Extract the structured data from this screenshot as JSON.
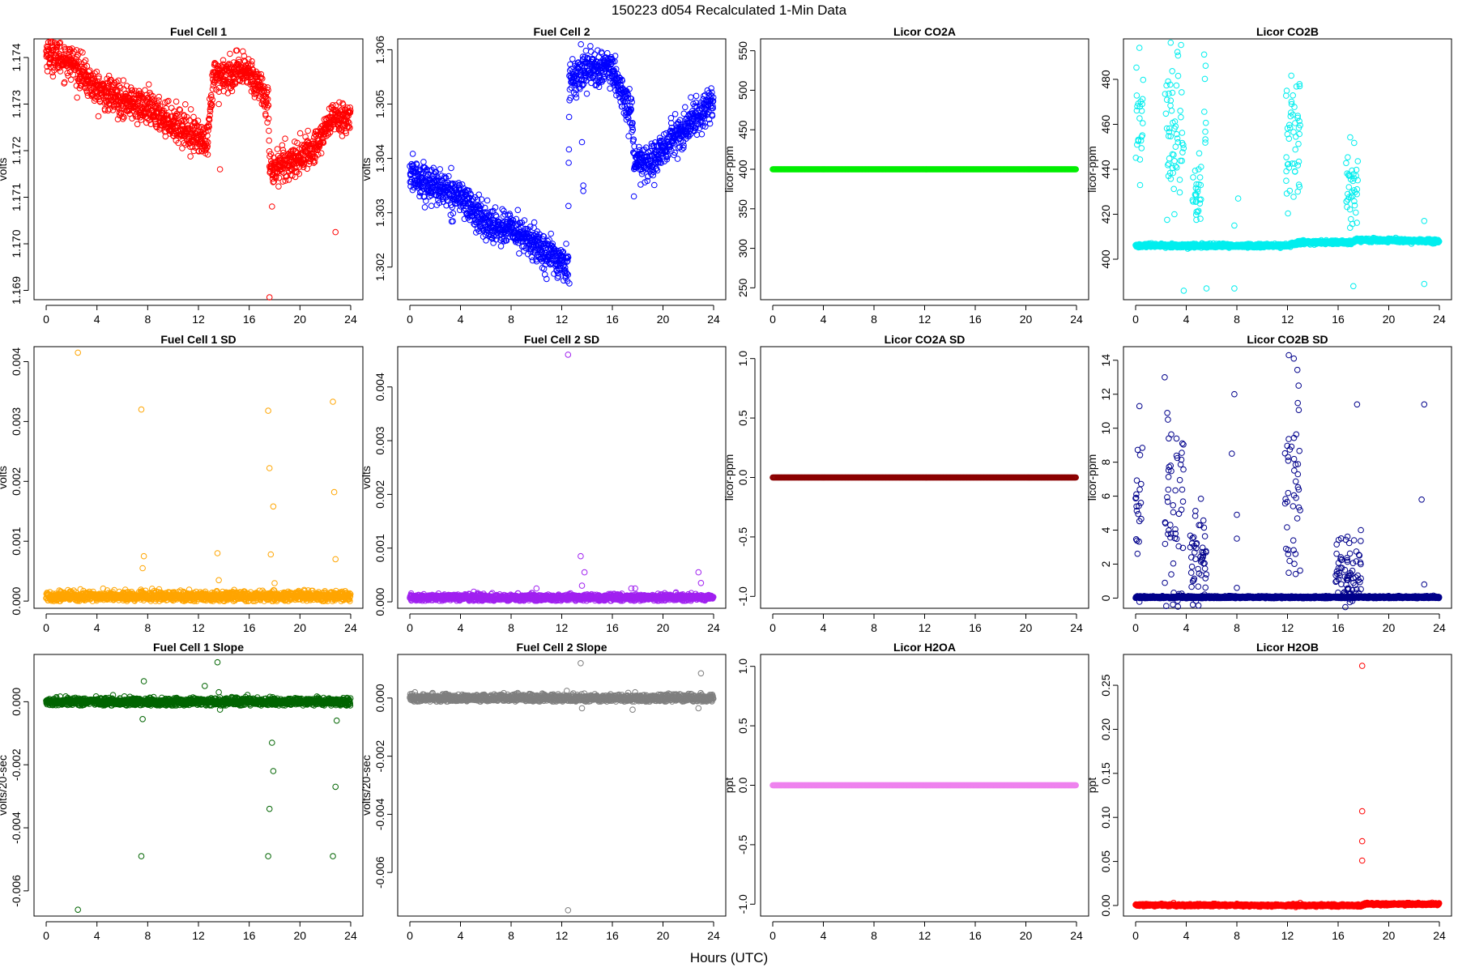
{
  "figure": {
    "title": "150223   d054   Recalculated 1-Min Data",
    "xlabel": "Hours (UTC)"
  },
  "chart_data": [
    {
      "type": "scatter",
      "title": "Fuel Cell 1",
      "ylabel": "volts",
      "color": "#ff0000",
      "xlim": [
        0,
        24
      ],
      "ylim": [
        1.1688,
        1.1744
      ],
      "x_ticks": [
        "0",
        "4",
        "8",
        "12",
        "16",
        "20",
        "24"
      ],
      "y_ticks": [
        "1.169",
        "1.170",
        "1.171",
        "1.172",
        "1.173",
        "1.174"
      ],
      "series": [
        {
          "pattern": "piecewise",
          "noise": 0.00018,
          "segments": [
            [
              0,
              1.1741
            ],
            [
              2,
              1.1739
            ],
            [
              4,
              1.1733
            ],
            [
              8,
              1.1729
            ],
            [
              12,
              1.1723
            ],
            [
              12.7,
              1.1721
            ],
            [
              13.2,
              1.1736
            ],
            [
              16,
              1.1737
            ],
            [
              17.5,
              1.1731
            ],
            [
              17.6,
              1.1716
            ],
            [
              19.5,
              1.1718
            ],
            [
              21,
              1.172
            ],
            [
              22.5,
              1.1727
            ],
            [
              23.8,
              1.1727
            ]
          ],
          "outliers": [
            [
              17.6,
              1.16885
            ],
            [
              22.8,
              1.17025
            ],
            [
              13.7,
              1.1716
            ],
            [
              13.6,
              1.173
            ],
            [
              17.8,
              1.1708
            ]
          ]
        }
      ]
    },
    {
      "type": "scatter",
      "title": "Fuel Cell 2",
      "ylabel": "volts",
      "color": "#0000ff",
      "xlim": [
        0,
        24
      ],
      "ylim": [
        1.3014,
        1.3062
      ],
      "x_ticks": [
        "0",
        "4",
        "8",
        "12",
        "16",
        "20",
        "24"
      ],
      "y_ticks": [
        "1.302",
        "1.303",
        "1.304",
        "1.305",
        "1.306"
      ],
      "series": [
        {
          "pattern": "piecewise",
          "noise": 0.00016,
          "segments": [
            [
              0,
              1.3037
            ],
            [
              2,
              1.3035
            ],
            [
              4,
              1.3033
            ],
            [
              6,
              1.3028
            ],
            [
              8,
              1.3027
            ],
            [
              10,
              1.3024
            ],
            [
              12.5,
              1.302
            ],
            [
              12.6,
              1.3054
            ],
            [
              14,
              1.3057
            ],
            [
              16,
              1.3056
            ],
            [
              17.5,
              1.3048
            ],
            [
              17.8,
              1.3039
            ],
            [
              19,
              1.3039
            ],
            [
              21,
              1.3044
            ],
            [
              23.8,
              1.305
            ]
          ],
          "outliers": [
            [
              13.6,
              1.3043
            ],
            [
              13.7,
              1.3035
            ],
            [
              13.7,
              1.3034
            ],
            [
              12.6,
              1.3017
            ],
            [
              17.7,
              1.3033
            ]
          ]
        }
      ]
    },
    {
      "type": "scatter",
      "title": "Licor CO2A",
      "ylabel": "licor-ppm",
      "color": "#00ee00",
      "xlim": [
        0,
        24
      ],
      "ylim": [
        235,
        565
      ],
      "x_ticks": [
        "0",
        "4",
        "8",
        "12",
        "16",
        "20",
        "24"
      ],
      "y_ticks": [
        "250",
        "300",
        "350",
        "400",
        "450",
        "500",
        "550"
      ],
      "series": [
        {
          "pattern": "constant",
          "value": 400,
          "noise": 0
        }
      ]
    },
    {
      "type": "scatter",
      "title": "Licor CO2B",
      "ylabel": "licor-ppm",
      "color": "#00eeee",
      "xlim": [
        0,
        24
      ],
      "ylim": [
        382,
        498
      ],
      "x_ticks": [
        "0",
        "4",
        "8",
        "12",
        "16",
        "20",
        "24"
      ],
      "y_ticks": [
        "400",
        "420",
        "440",
        "460",
        "480"
      ],
      "series": [
        {
          "pattern": "piecewise",
          "noise": 0.4,
          "segments": [
            [
              0,
              406
            ],
            [
              5.5,
              406
            ],
            [
              12,
              406
            ],
            [
              13,
              407.5
            ],
            [
              17,
              407.5
            ],
            [
              17.5,
              408.5
            ],
            [
              24,
              408
            ]
          ],
          "clusters": [
            [
              0,
              0.6,
              460,
              15
            ],
            [
              2.3,
              3.8,
              455,
              18
            ],
            [
              4.5,
              5.2,
              430,
              8
            ],
            [
              5.4,
              5.6,
              465,
              15
            ],
            [
              11.8,
              13,
              450,
              15
            ],
            [
              16.6,
              17.6,
              430,
              10
            ]
          ],
          "outliers": [
            [
              7.8,
              415
            ],
            [
              8.1,
              427
            ],
            [
              3.8,
              386
            ],
            [
              5.6,
              387
            ],
            [
              7.8,
              387
            ],
            [
              17.2,
              388
            ],
            [
              22.8,
              389
            ],
            [
              22.8,
              417
            ],
            [
              0.3,
              494
            ]
          ]
        }
      ]
    },
    {
      "type": "scatter",
      "title": "Fuel Cell 1 SD",
      "ylabel": "volts",
      "color": "#ffa500",
      "xlim": [
        0,
        24
      ],
      "ylim": [
        -0.00012,
        0.00425
      ],
      "x_ticks": [
        "0",
        "4",
        "8",
        "12",
        "16",
        "20",
        "24"
      ],
      "y_ticks": [
        "0.000",
        "0.001",
        "0.002",
        "0.003",
        "0.004"
      ],
      "series": [
        {
          "pattern": "constant",
          "value": 8e-05,
          "noise": 4e-05,
          "outliers": [
            [
              2.5,
              0.00415
            ],
            [
              7.5,
              0.0032
            ],
            [
              7.7,
              0.00075
            ],
            [
              7.6,
              0.00055
            ],
            [
              13.5,
              0.0008
            ],
            [
              13.6,
              0.00035
            ],
            [
              17.5,
              0.00318
            ],
            [
              17.6,
              0.00222
            ],
            [
              17.9,
              0.00158
            ],
            [
              17.7,
              0.00078
            ],
            [
              22.6,
              0.00333
            ],
            [
              22.7,
              0.00182
            ],
            [
              22.8,
              0.0007
            ],
            [
              18,
              0.0003
            ]
          ]
        }
      ]
    },
    {
      "type": "scatter",
      "title": "Fuel Cell 2 SD",
      "ylabel": "volts",
      "color": "#a020f0",
      "xlim": [
        0,
        24
      ],
      "ylim": [
        -0.00012,
        0.00475
      ],
      "x_ticks": [
        "0",
        "4",
        "8",
        "12",
        "16",
        "20",
        "24"
      ],
      "y_ticks": [
        "0.000",
        "0.001",
        "0.002",
        "0.003",
        "0.004"
      ],
      "series": [
        {
          "pattern": "constant",
          "value": 8e-05,
          "noise": 3e-05,
          "outliers": [
            [
              12.5,
              0.0046
            ],
            [
              13.5,
              0.00085
            ],
            [
              13.8,
              0.00055
            ],
            [
              13.6,
              0.0003
            ],
            [
              10,
              0.00025
            ],
            [
              22.8,
              0.00055
            ],
            [
              23,
              0.00035
            ],
            [
              17.5,
              0.00025
            ],
            [
              17.8,
              0.00025
            ]
          ]
        }
      ]
    },
    {
      "type": "scatter",
      "title": "Licor CO2A SD",
      "ylabel": "licor-ppm",
      "color": "#8b0000",
      "xlim": [
        0,
        24
      ],
      "ylim": [
        -1.1,
        1.1
      ],
      "x_ticks": [
        "0",
        "4",
        "8",
        "12",
        "16",
        "20",
        "24"
      ],
      "y_ticks": [
        "-1.0",
        "-0.5",
        "0.0",
        "0.5",
        "1.0"
      ],
      "series": [
        {
          "pattern": "constant",
          "value": 0,
          "noise": 0
        }
      ]
    },
    {
      "type": "scatter",
      "title": "Licor CO2B SD",
      "ylabel": "licor-ppm",
      "color": "#00008b",
      "xlim": [
        0,
        24
      ],
      "ylim": [
        -0.6,
        14.8
      ],
      "x_ticks": [
        "0",
        "4",
        "8",
        "12",
        "16",
        "20",
        "24"
      ],
      "y_ticks": [
        "0",
        "2",
        "4",
        "6",
        "8",
        "10",
        "12",
        "14"
      ],
      "series": [
        {
          "pattern": "constant",
          "value": 0.05,
          "noise": 0.03,
          "clusters": [
            [
              0,
              0.6,
              4.5,
              3.5
            ],
            [
              2.3,
              3.8,
              4.2,
              3.5
            ],
            [
              4.3,
              5.6,
              1.8,
              1.5
            ],
            [
              11.8,
              13,
              6,
              4
            ],
            [
              15.8,
              17.8,
              1.2,
              1.2
            ]
          ],
          "outliers": [
            [
              2.3,
              13
            ],
            [
              12.1,
              14.3
            ],
            [
              12.5,
              14.1
            ],
            [
              0.3,
              11.3
            ],
            [
              2.5,
              10.9
            ],
            [
              7.8,
              12
            ],
            [
              17.5,
              11.4
            ],
            [
              22.8,
              11.4
            ],
            [
              7.6,
              8.5
            ],
            [
              8,
              4.9
            ],
            [
              8,
              3.5
            ],
            [
              22.6,
              5.8
            ],
            [
              22.8,
              0.8
            ],
            [
              8,
              0.6
            ],
            [
              17.8,
              4
            ]
          ]
        }
      ]
    },
    {
      "type": "scatter",
      "title": "Fuel Cell 1 Slope",
      "ylabel": "volts/20-sec",
      "color": "#006400",
      "xlim": [
        0,
        24
      ],
      "ylim": [
        -0.0068,
        0.0015
      ],
      "x_ticks": [
        "0",
        "4",
        "8",
        "12",
        "16",
        "20",
        "24"
      ],
      "y_ticks": [
        "-0.006",
        "-0.004",
        "-0.002",
        "0.000"
      ],
      "series": [
        {
          "pattern": "constant",
          "value": 0,
          "noise": 6e-05,
          "outliers": [
            [
              2.5,
              -0.0066
            ],
            [
              7.5,
              -0.0049
            ],
            [
              7.6,
              -0.00055
            ],
            [
              7.7,
              0.00065
            ],
            [
              13.5,
              0.00125
            ],
            [
              12.5,
              0.0005
            ],
            [
              17.5,
              -0.0049
            ],
            [
              17.6,
              -0.0034
            ],
            [
              17.8,
              -0.0013
            ],
            [
              17.9,
              -0.0022
            ],
            [
              22.6,
              -0.0049
            ],
            [
              22.8,
              -0.0027
            ],
            [
              22.9,
              -0.0006
            ],
            [
              13.6,
              0.0003
            ],
            [
              13.7,
              -0.00025
            ]
          ]
        }
      ]
    },
    {
      "type": "scatter",
      "title": "Fuel Cell 2 Slope",
      "ylabel": "volts/20-sec",
      "color": "#7f7f7f",
      "xlim": [
        0,
        24
      ],
      "ylim": [
        -0.0075,
        0.0015
      ],
      "x_ticks": [
        "0",
        "4",
        "8",
        "12",
        "16",
        "20",
        "24"
      ],
      "y_ticks": [
        "-0.006",
        "-0.004",
        "-0.002",
        "0.000"
      ],
      "series": [
        {
          "pattern": "constant",
          "value": 0,
          "noise": 6e-05,
          "outliers": [
            [
              12.5,
              -0.0073
            ],
            [
              13.5,
              0.0012
            ],
            [
              23,
              0.00085
            ],
            [
              22.8,
              -0.00035
            ],
            [
              17.6,
              -0.0004
            ],
            [
              17.8,
              0.0002
            ],
            [
              13.6,
              -0.00035
            ],
            [
              12.4,
              0.00025
            ]
          ]
        }
      ]
    },
    {
      "type": "scatter",
      "title": "Licor H2OA",
      "ylabel": "ppt",
      "color": "#ee82ee",
      "xlim": [
        0,
        24
      ],
      "ylim": [
        -1.1,
        1.1
      ],
      "x_ticks": [
        "0",
        "4",
        "8",
        "12",
        "16",
        "20",
        "24"
      ],
      "y_ticks": [
        "-1.0",
        "-0.5",
        "0.0",
        "0.5",
        "1.0"
      ],
      "series": [
        {
          "pattern": "constant",
          "value": 0,
          "noise": 0
        }
      ]
    },
    {
      "type": "scatter",
      "title": "Licor H2OB",
      "ylabel": "ppt",
      "color": "#ff0000",
      "xlim": [
        0,
        24
      ],
      "ylim": [
        -0.012,
        0.285
      ],
      "x_ticks": [
        "0",
        "4",
        "8",
        "12",
        "16",
        "20",
        "24"
      ],
      "y_ticks": [
        "0.00",
        "0.05",
        "0.10",
        "0.15",
        "0.20",
        "0.25"
      ],
      "series": [
        {
          "pattern": "piecewise",
          "noise": 0.0006,
          "segments": [
            [
              0,
              0.0005
            ],
            [
              17.9,
              0.0
            ],
            [
              18,
              0.0015
            ],
            [
              24,
              0.0015
            ]
          ],
          "outliers": [
            [
              17.9,
              0.272
            ],
            [
              17.9,
              0.107
            ],
            [
              17.9,
              0.073
            ],
            [
              17.9,
              0.051
            ],
            [
              3,
              0.003
            ],
            [
              8,
              0.002
            ],
            [
              13,
              0.003
            ]
          ]
        }
      ]
    }
  ]
}
